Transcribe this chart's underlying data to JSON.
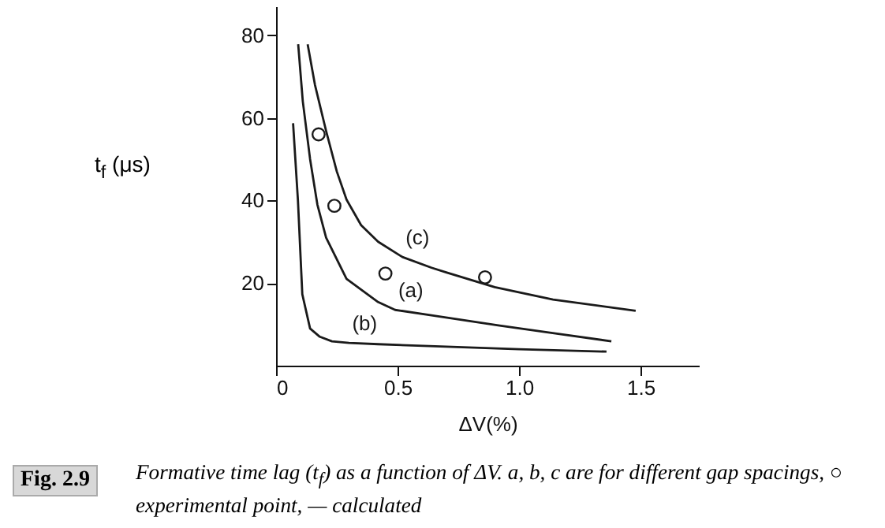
{
  "chart_data": {
    "type": "line",
    "xlabel": "ΔV(%)",
    "ylabel": "t$_{f}$ (μs)",
    "xlim": [
      0,
      1.74
    ],
    "ylim": [
      0,
      87
    ],
    "xticks": [
      0,
      0.5,
      {
        "value": 1,
        "label": "1.0"
      },
      1.5
    ],
    "yticks": [
      20,
      40,
      60,
      80
    ],
    "grid": false,
    "line_style": "solid",
    "series": [
      {
        "name": "(b)",
        "color": "#1a1a1a",
        "x": [
          0.07,
          0.09,
          0.108,
          0.14,
          0.18,
          0.23,
          0.3,
          0.42,
          0.7,
          1.0,
          1.36
        ],
        "values": [
          58.7,
          40,
          17.3,
          9,
          7,
          5.9,
          5.5,
          5.2,
          4.6,
          4,
          3.4
        ]
      },
      {
        "name": "(a)",
        "color": "#1a1a1a",
        "x": [
          0.091,
          0.11,
          0.14,
          0.17,
          0.206,
          0.29,
          0.42,
          0.49,
          0.64,
          0.92,
          1.15,
          1.38
        ],
        "values": [
          77.8,
          64,
          50,
          39,
          31,
          21,
          15.4,
          13.5,
          12.2,
          9.7,
          7.8,
          5.9
        ]
      },
      {
        "name": "(c)",
        "color": "#1a1a1a",
        "x": [
          0.13,
          0.16,
          0.206,
          0.25,
          0.29,
          0.35,
          0.42,
          0.52,
          0.64,
          0.7,
          0.9,
          1.14,
          1.48
        ],
        "values": [
          77.8,
          68,
          56.8,
          47,
          40.2,
          34,
          30,
          26.3,
          23.7,
          22.6,
          19,
          16,
          13.3
        ]
      },
      {
        "type": "scatter",
        "marker": "circle",
        "color": "#1a1a1a",
        "x": [
          0.175,
          0.24,
          0.45,
          0.86
        ],
        "values": [
          56,
          38.7,
          22.3,
          21.4
        ]
      }
    ],
    "annotations": [
      "Fig. 2.9",
      "Formative time lag (t$_{f}$) as a function of ΔV. a, b, c are for different gap spacings, ○ experimental point, — calculated"
    ]
  }
}
